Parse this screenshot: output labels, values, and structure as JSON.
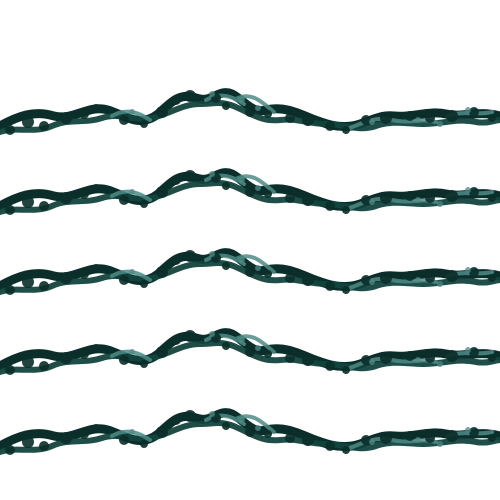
{
  "pattern": {
    "colors": {
      "background": "#ffffff",
      "dark": "#0b2e2a",
      "mid": "#12443d",
      "highlight": "#4f8a86"
    },
    "stroke_count": 5
  }
}
